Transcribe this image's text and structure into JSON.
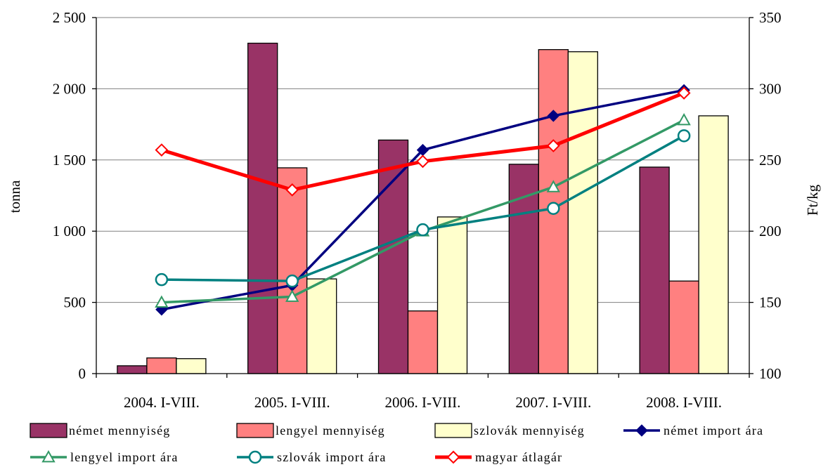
{
  "chart_data": {
    "type": "bar",
    "categories": [
      "2004. I-VIII.",
      "2005. I-VIII.",
      "2006. I-VIII.",
      "2007. I-VIII.",
      "2008. I-VIII."
    ],
    "ylabel": "tonna",
    "y2label": "Ft/kg",
    "ylim": [
      0,
      2500
    ],
    "y2lim": [
      100,
      350
    ],
    "y_ticks": [
      0,
      500,
      1000,
      1500,
      2000,
      2500
    ],
    "y_tick_labels": [
      "0",
      "500",
      "1 000",
      "1 500",
      "2 000",
      "2 500"
    ],
    "y2_ticks": [
      100,
      150,
      200,
      250,
      300,
      350
    ],
    "y2_tick_labels": [
      "100",
      "150",
      "200",
      "250",
      "300",
      "350"
    ],
    "grid": true,
    "legend_position": "bottom",
    "bar_series": [
      {
        "name": "német mennyiség",
        "color": "#993366",
        "values": [
          55,
          2320,
          1640,
          1470,
          1450
        ]
      },
      {
        "name": "lengyel mennyiség",
        "color": "#ff8080",
        "values": [
          110,
          1445,
          440,
          2275,
          650
        ]
      },
      {
        "name": "szlovák mennyiség",
        "color": "#ffffcc",
        "values": [
          105,
          665,
          1100,
          2260,
          1810
        ]
      }
    ],
    "line_series": [
      {
        "name": "német import ára",
        "axis": "right",
        "color": "#000080",
        "marker": "diamond-filled",
        "values": [
          145,
          162,
          257,
          281,
          299
        ]
      },
      {
        "name": "lengyel import ára",
        "axis": "right",
        "color": "#339966",
        "marker": "triangle-open",
        "values": [
          150,
          154,
          200,
          231,
          278
        ]
      },
      {
        "name": "szlovák import ára",
        "axis": "right",
        "color": "#008080",
        "marker": "circle-open",
        "values": [
          166,
          165,
          201,
          216,
          267
        ]
      },
      {
        "name": "magyar átlagár",
        "axis": "right",
        "color": "#ff0000",
        "marker": "diamond-open",
        "values": [
          257,
          229,
          249,
          260,
          297
        ]
      }
    ]
  }
}
